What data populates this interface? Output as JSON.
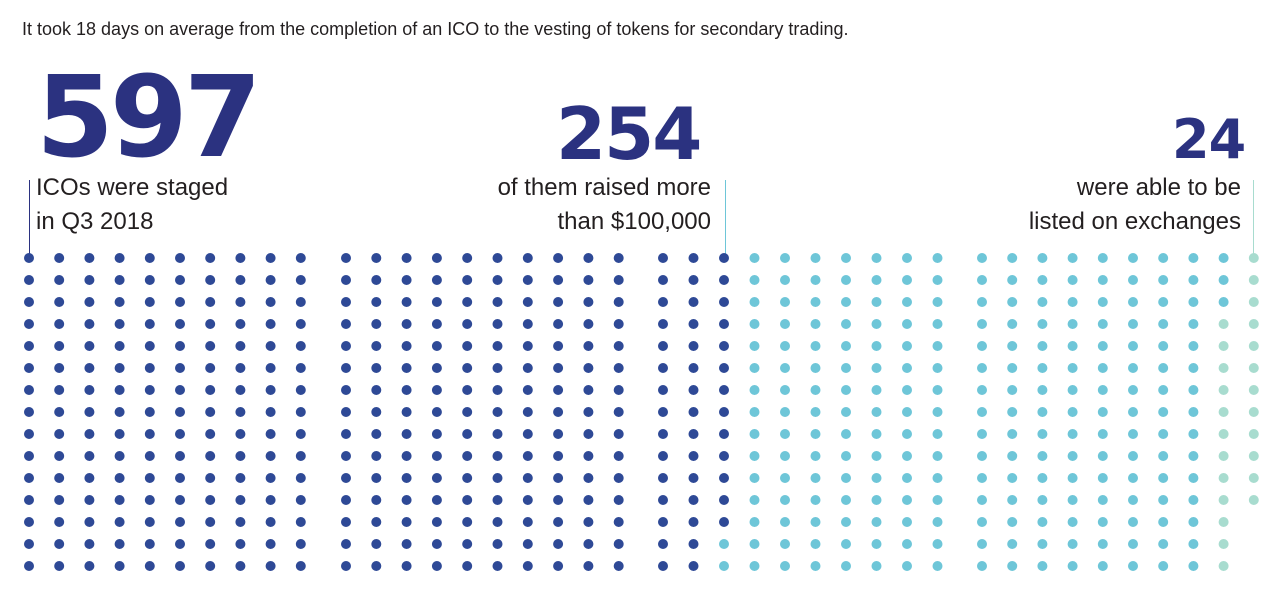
{
  "caption": "It took 18 days on average from the completion of an ICO to the vesting of tokens for secondary trading.",
  "stats": [
    {
      "number": "597",
      "line1": "ICOs were staged",
      "line2": "in Q3 2018"
    },
    {
      "number": "254",
      "line1": "of them raised more",
      "line2": "than $100,000"
    },
    {
      "number": "24",
      "line1": "were able to be",
      "line2": "listed on exchanges"
    }
  ],
  "colors": {
    "dark_blue": "#2b3280",
    "dot_blue": "#2e4996",
    "light_blue": "#6ec6d8",
    "mint": "#a8dccf",
    "text": "#231f20"
  },
  "chart_data": {
    "type": "dot-matrix",
    "values": [
      597,
      254,
      24
    ],
    "segments": [
      {
        "label": "ICOs were staged in Q3 2018",
        "dots": 343,
        "color": "#2e4996"
      },
      {
        "label": "of them raised more than $100,000",
        "dots": 230,
        "color": "#6ec6d8"
      },
      {
        "label": "were able to be listed on exchanges",
        "dots": 24,
        "color": "#a8dccf"
      }
    ]
  }
}
